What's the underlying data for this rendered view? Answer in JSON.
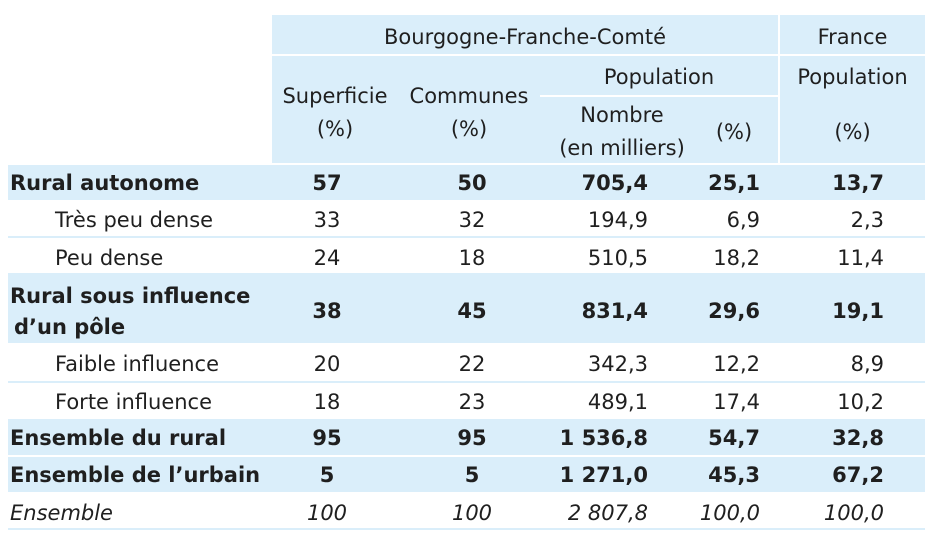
{
  "header": {
    "region": "Bourgogne-Franche-Comté",
    "country": "France",
    "population": "Population",
    "population_fr": "Population",
    "superficie": "Superficie",
    "superficie_unit": "(%)",
    "communes": "Communes",
    "communes_unit": "(%)",
    "nombre": "Nombre",
    "nombre_unit": "(en milliers)",
    "pct": "(%)",
    "pct_fr": "(%)"
  },
  "rows": [
    {
      "label": "Rural autonome",
      "label2": "",
      "sup": "57",
      "com": "50",
      "nb": "705,4",
      "pct": "25,1",
      "fr": "13,7"
    },
    {
      "label": "Très peu dense",
      "label2": "",
      "sup": "33",
      "com": "32",
      "nb": "194,9",
      "pct": "6,9",
      "fr": "2,3"
    },
    {
      "label": "Peu dense",
      "label2": "",
      "sup": "24",
      "com": "18",
      "nb": "510,5",
      "pct": "18,2",
      "fr": "11,4"
    },
    {
      "label": "Rural sous influence",
      "label2": "d’un pôle",
      "sup": "38",
      "com": "45",
      "nb": "831,4",
      "pct": "29,6",
      "fr": "19,1"
    },
    {
      "label": "Faible influence",
      "label2": "",
      "sup": "20",
      "com": "22",
      "nb": "342,3",
      "pct": "12,2",
      "fr": "8,9"
    },
    {
      "label": "Forte influence",
      "label2": "",
      "sup": "18",
      "com": "23",
      "nb": "489,1",
      "pct": "17,4",
      "fr": "10,2"
    },
    {
      "label": "Ensemble du rural",
      "label2": "",
      "sup": "95",
      "com": "95",
      "nb": "1 536,8",
      "pct": "54,7",
      "fr": "32,8"
    },
    {
      "label": "Ensemble de l’urbain",
      "label2": "",
      "sup": "5",
      "com": "5",
      "nb": "1 271,0",
      "pct": "45,3",
      "fr": "67,2"
    },
    {
      "label": "Ensemble",
      "label2": "",
      "sup": "100",
      "com": "100",
      "nb": "2 807,8",
      "pct": "100,0",
      "fr": "100,0"
    }
  ]
}
